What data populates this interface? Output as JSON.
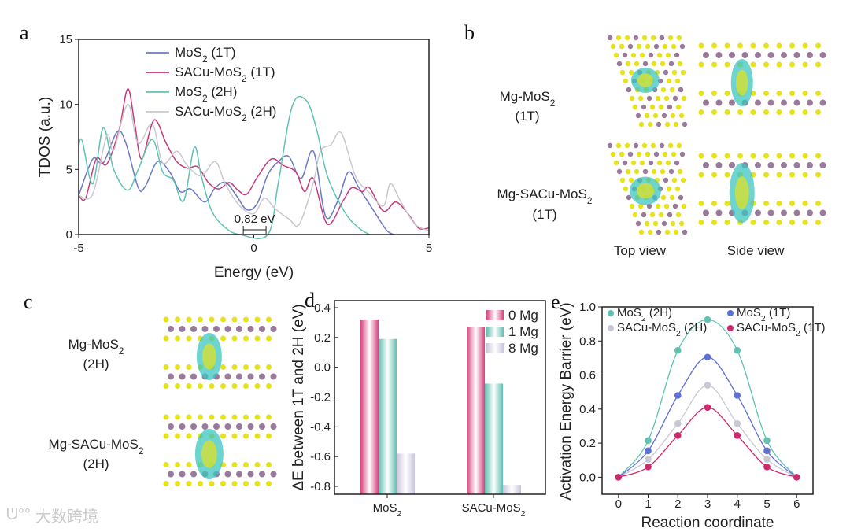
{
  "panel_labels": {
    "a": "a",
    "b": "b",
    "c": "c",
    "d": "d",
    "e": "e"
  },
  "panel_b": {
    "row1": [
      {
        "t": "Mg-MoS"
      },
      {
        "t": "2",
        "sub": true
      }
    ],
    "row1b": "(1T)",
    "row2": [
      {
        "t": "Mg-SACu-MoS"
      },
      {
        "t": "2",
        "sub": true
      }
    ],
    "row2b": "(1T)",
    "top_view": "Top view",
    "side_view": "Side view"
  },
  "panel_c": {
    "row1": [
      {
        "t": "Mg-MoS"
      },
      {
        "t": "2",
        "sub": true
      }
    ],
    "row1b": "(2H)",
    "row2": [
      {
        "t": "Mg-SACu-MoS"
      },
      {
        "t": "2",
        "sub": true
      }
    ],
    "row2b": "(2H)"
  },
  "watermark": "大数跨境",
  "colors": {
    "mos2_1t": "#6b79c4",
    "sacu_1t": "#c53a7c",
    "mos2_2h": "#5fc2b2",
    "sacu_2h": "#c9c8cf",
    "atom_s": "#e6e21c",
    "atom_mo": "#9a7a9c",
    "charge": "#3cc6c0"
  },
  "chart_data": [
    {
      "id": "a",
      "type": "line",
      "title": "",
      "xlabel": "Energy (eV)",
      "ylabel": "TDOS (a.u.)",
      "xlim": [
        -5,
        5
      ],
      "ylim": [
        0,
        15
      ],
      "xticks": [
        "-5",
        "0",
        "5"
      ],
      "yticks": [
        "0",
        "5",
        "10",
        "15"
      ],
      "annotation": "0.82 eV",
      "annotation_range": [
        -0.3,
        0.35
      ],
      "legend_position": "top-center",
      "series": [
        {
          "name": [
            {
              "t": "MoS"
            },
            {
              "t": "2",
              "sub": true
            },
            {
              "t": " (1T)"
            }
          ],
          "color": "#6b79c4",
          "points": [
            [
              -5,
              3
            ],
            [
              -4.6,
              5.8
            ],
            [
              -4.3,
              5.5
            ],
            [
              -3.9,
              7.9
            ],
            [
              -3.65,
              7
            ],
            [
              -3.3,
              3.6
            ],
            [
              -3.1,
              3.7
            ],
            [
              -2.75,
              5.6
            ],
            [
              -2.4,
              4.8
            ],
            [
              -2.1,
              3.3
            ],
            [
              -1.8,
              3.5
            ],
            [
              -1.4,
              2.5
            ],
            [
              -1.1,
              3.6
            ],
            [
              -0.8,
              4
            ],
            [
              -0.5,
              3
            ],
            [
              -0.2,
              1.9
            ],
            [
              0.1,
              2.4
            ],
            [
              0.4,
              4.6
            ],
            [
              0.7,
              5.6
            ],
            [
              1.0,
              6
            ],
            [
              1.35,
              4.3
            ],
            [
              1.7,
              6.4
            ],
            [
              2.05,
              1.4
            ],
            [
              2.4,
              2.6
            ],
            [
              2.7,
              4.8
            ],
            [
              3.0,
              3.6
            ],
            [
              3.5,
              1.5
            ],
            [
              3.8,
              0.3
            ],
            [
              4.0,
              0
            ]
          ]
        },
        {
          "name": [
            {
              "t": "SACu-MoS"
            },
            {
              "t": "2",
              "sub": true
            },
            {
              "t": " (1T)"
            }
          ],
          "color": "#c53a7c",
          "points": [
            [
              -5,
              3
            ],
            [
              -4.8,
              2.8
            ],
            [
              -4.5,
              5.8
            ],
            [
              -4.2,
              5.4
            ],
            [
              -3.85,
              8
            ],
            [
              -3.6,
              11.2
            ],
            [
              -3.4,
              8.5
            ],
            [
              -3.2,
              5.8
            ],
            [
              -2.85,
              8.8
            ],
            [
              -2.5,
              7
            ],
            [
              -2.2,
              5.6
            ],
            [
              -1.9,
              5.1
            ],
            [
              -1.6,
              5.2
            ],
            [
              -1.3,
              4
            ],
            [
              -1.0,
              3.5
            ],
            [
              -0.7,
              4
            ],
            [
              -0.45,
              3.4
            ],
            [
              -0.2,
              3.1
            ],
            [
              0.1,
              4.4
            ],
            [
              0.5,
              5.8
            ],
            [
              0.85,
              5.3
            ],
            [
              1.2,
              4.8
            ],
            [
              1.45,
              3.3
            ],
            [
              1.7,
              4.3
            ],
            [
              2.1,
              0.8
            ],
            [
              2.55,
              2.6
            ],
            [
              2.8,
              3.6
            ],
            [
              3.1,
              3.3
            ],
            [
              3.3,
              3.6
            ],
            [
              3.7,
              1.8
            ],
            [
              4.05,
              2.5
            ],
            [
              4.4,
              1.6
            ],
            [
              4.7,
              0.5
            ],
            [
              5,
              0.5
            ]
          ]
        },
        {
          "name": [
            {
              "t": "MoS"
            },
            {
              "t": "2",
              "sub": true
            },
            {
              "t": " (2H)"
            }
          ],
          "color": "#5fc2b2",
          "points": [
            [
              -5,
              6.8
            ],
            [
              -4.9,
              7.2
            ],
            [
              -4.6,
              3.9
            ],
            [
              -4.3,
              8.2
            ],
            [
              -4.0,
              5
            ],
            [
              -3.6,
              3.4
            ],
            [
              -3.3,
              5
            ],
            [
              -2.9,
              7.3
            ],
            [
              -2.6,
              4.8
            ],
            [
              -2.3,
              4.2
            ],
            [
              -2.0,
              2.6
            ],
            [
              -1.7,
              6.7
            ],
            [
              -1.5,
              4.5
            ],
            [
              -1.2,
              1.8
            ],
            [
              -0.8,
              0.5
            ],
            [
              -0.4,
              0
            ],
            [
              0.4,
              0
            ],
            [
              0.7,
              4
            ],
            [
              1.1,
              9.9
            ],
            [
              1.5,
              10.3
            ],
            [
              1.8,
              8
            ],
            [
              2.1,
              4.5
            ],
            [
              2.6,
              1.7
            ],
            [
              3.0,
              0.5
            ],
            [
              3.3,
              0
            ]
          ]
        },
        {
          "name": [
            {
              "t": "SACu-MoS"
            },
            {
              "t": "2",
              "sub": true
            },
            {
              "t": " (2H)"
            }
          ],
          "color": "#c9c8cf",
          "points": [
            [
              -5,
              3
            ],
            [
              -4.6,
              3.1
            ],
            [
              -4.2,
              7.6
            ],
            [
              -4.0,
              6.5
            ],
            [
              -3.6,
              10
            ],
            [
              -3.3,
              7
            ],
            [
              -2.9,
              8.5
            ],
            [
              -2.6,
              5.5
            ],
            [
              -2.2,
              6.4
            ],
            [
              -1.9,
              5.3
            ],
            [
              -1.5,
              4.5
            ],
            [
              -1.1,
              5.6
            ],
            [
              -0.8,
              3.8
            ],
            [
              -0.4,
              2.2
            ],
            [
              0,
              1.6
            ],
            [
              0.3,
              2.8
            ],
            [
              0.6,
              2
            ],
            [
              1.0,
              1.2
            ],
            [
              1.3,
              0.8
            ],
            [
              1.7,
              4
            ],
            [
              1.9,
              6.4
            ],
            [
              2.2,
              6.9
            ],
            [
              2.5,
              7.8
            ],
            [
              2.9,
              4.5
            ],
            [
              3.3,
              3.2
            ],
            [
              3.7,
              2.2
            ],
            [
              3.9,
              3.9
            ],
            [
              4.2,
              2.5
            ],
            [
              4.6,
              0.8
            ],
            [
              5,
              0.3
            ]
          ]
        }
      ]
    },
    {
      "id": "d",
      "type": "bar",
      "title": "",
      "xlabel": "",
      "ylabel": "ΔE between 1T and 2H (eV)",
      "ylim": [
        -0.85,
        0.4
      ],
      "yticks": [
        "0.4",
        "0.2",
        "0.0",
        "-0.2",
        "-0.4",
        "-0.6",
        "-0.8"
      ],
      "categories": [
        [
          {
            "t": "MoS"
          },
          {
            "t": "2",
            "sub": true
          }
        ],
        [
          {
            "t": "SACu-MoS"
          },
          {
            "t": "2",
            "sub": true
          }
        ]
      ],
      "legend_position": "top-right",
      "series": [
        {
          "name": "0 Mg",
          "color": "#d4417c",
          "values": [
            0.32,
            0.27
          ]
        },
        {
          "name": "1 Mg",
          "color": "#5fbfb0",
          "values": [
            0.19,
            -0.11
          ]
        },
        {
          "name": "8 Mg",
          "color": "#c9c6dc",
          "values": [
            -0.58,
            -0.79
          ]
        }
      ]
    },
    {
      "id": "e",
      "type": "scatter",
      "title": "",
      "xlabel": "Reaction coordinate",
      "ylabel": "Activation Energy Barrier (eV)",
      "xlim": [
        -0.55,
        6.55
      ],
      "ylim": [
        -0.1,
        1.0
      ],
      "xticks": [
        "0",
        "1",
        "2",
        "3",
        "4",
        "5",
        "6"
      ],
      "yticks": [
        "0.0",
        "0.2",
        "0.4",
        "0.6",
        "0.8",
        "1.0"
      ],
      "legend_position": "top",
      "x": [
        0,
        1,
        2,
        3,
        4,
        5,
        6
      ],
      "series": [
        {
          "name": [
            {
              "t": "MoS"
            },
            {
              "t": "2",
              "sub": true
            },
            {
              "t": " (2H)"
            }
          ],
          "color": "#5fc2b2",
          "values": [
            0,
            0.215,
            0.745,
            0.925,
            0.745,
            0.215,
            0
          ]
        },
        {
          "name": [
            {
              "t": "MoS"
            },
            {
              "t": "2",
              "sub": true
            },
            {
              "t": " (1T)"
            }
          ],
          "color": "#5e6fd6",
          "values": [
            0,
            0.155,
            0.48,
            0.705,
            0.48,
            0.155,
            0
          ]
        },
        {
          "name": [
            {
              "t": "SACu-MoS"
            },
            {
              "t": "2",
              "sub": true
            },
            {
              "t": " (2H)"
            }
          ],
          "color": "#c9c8d4",
          "values": [
            0,
            0.105,
            0.315,
            0.54,
            0.315,
            0.105,
            0
          ]
        },
        {
          "name": [
            {
              "t": "SACu-MoS"
            },
            {
              "t": "2",
              "sub": true
            },
            {
              "t": " (1T)"
            }
          ],
          "color": "#d0286e",
          "values": [
            0,
            0.06,
            0.245,
            0.41,
            0.245,
            0.06,
            0
          ]
        }
      ]
    }
  ]
}
